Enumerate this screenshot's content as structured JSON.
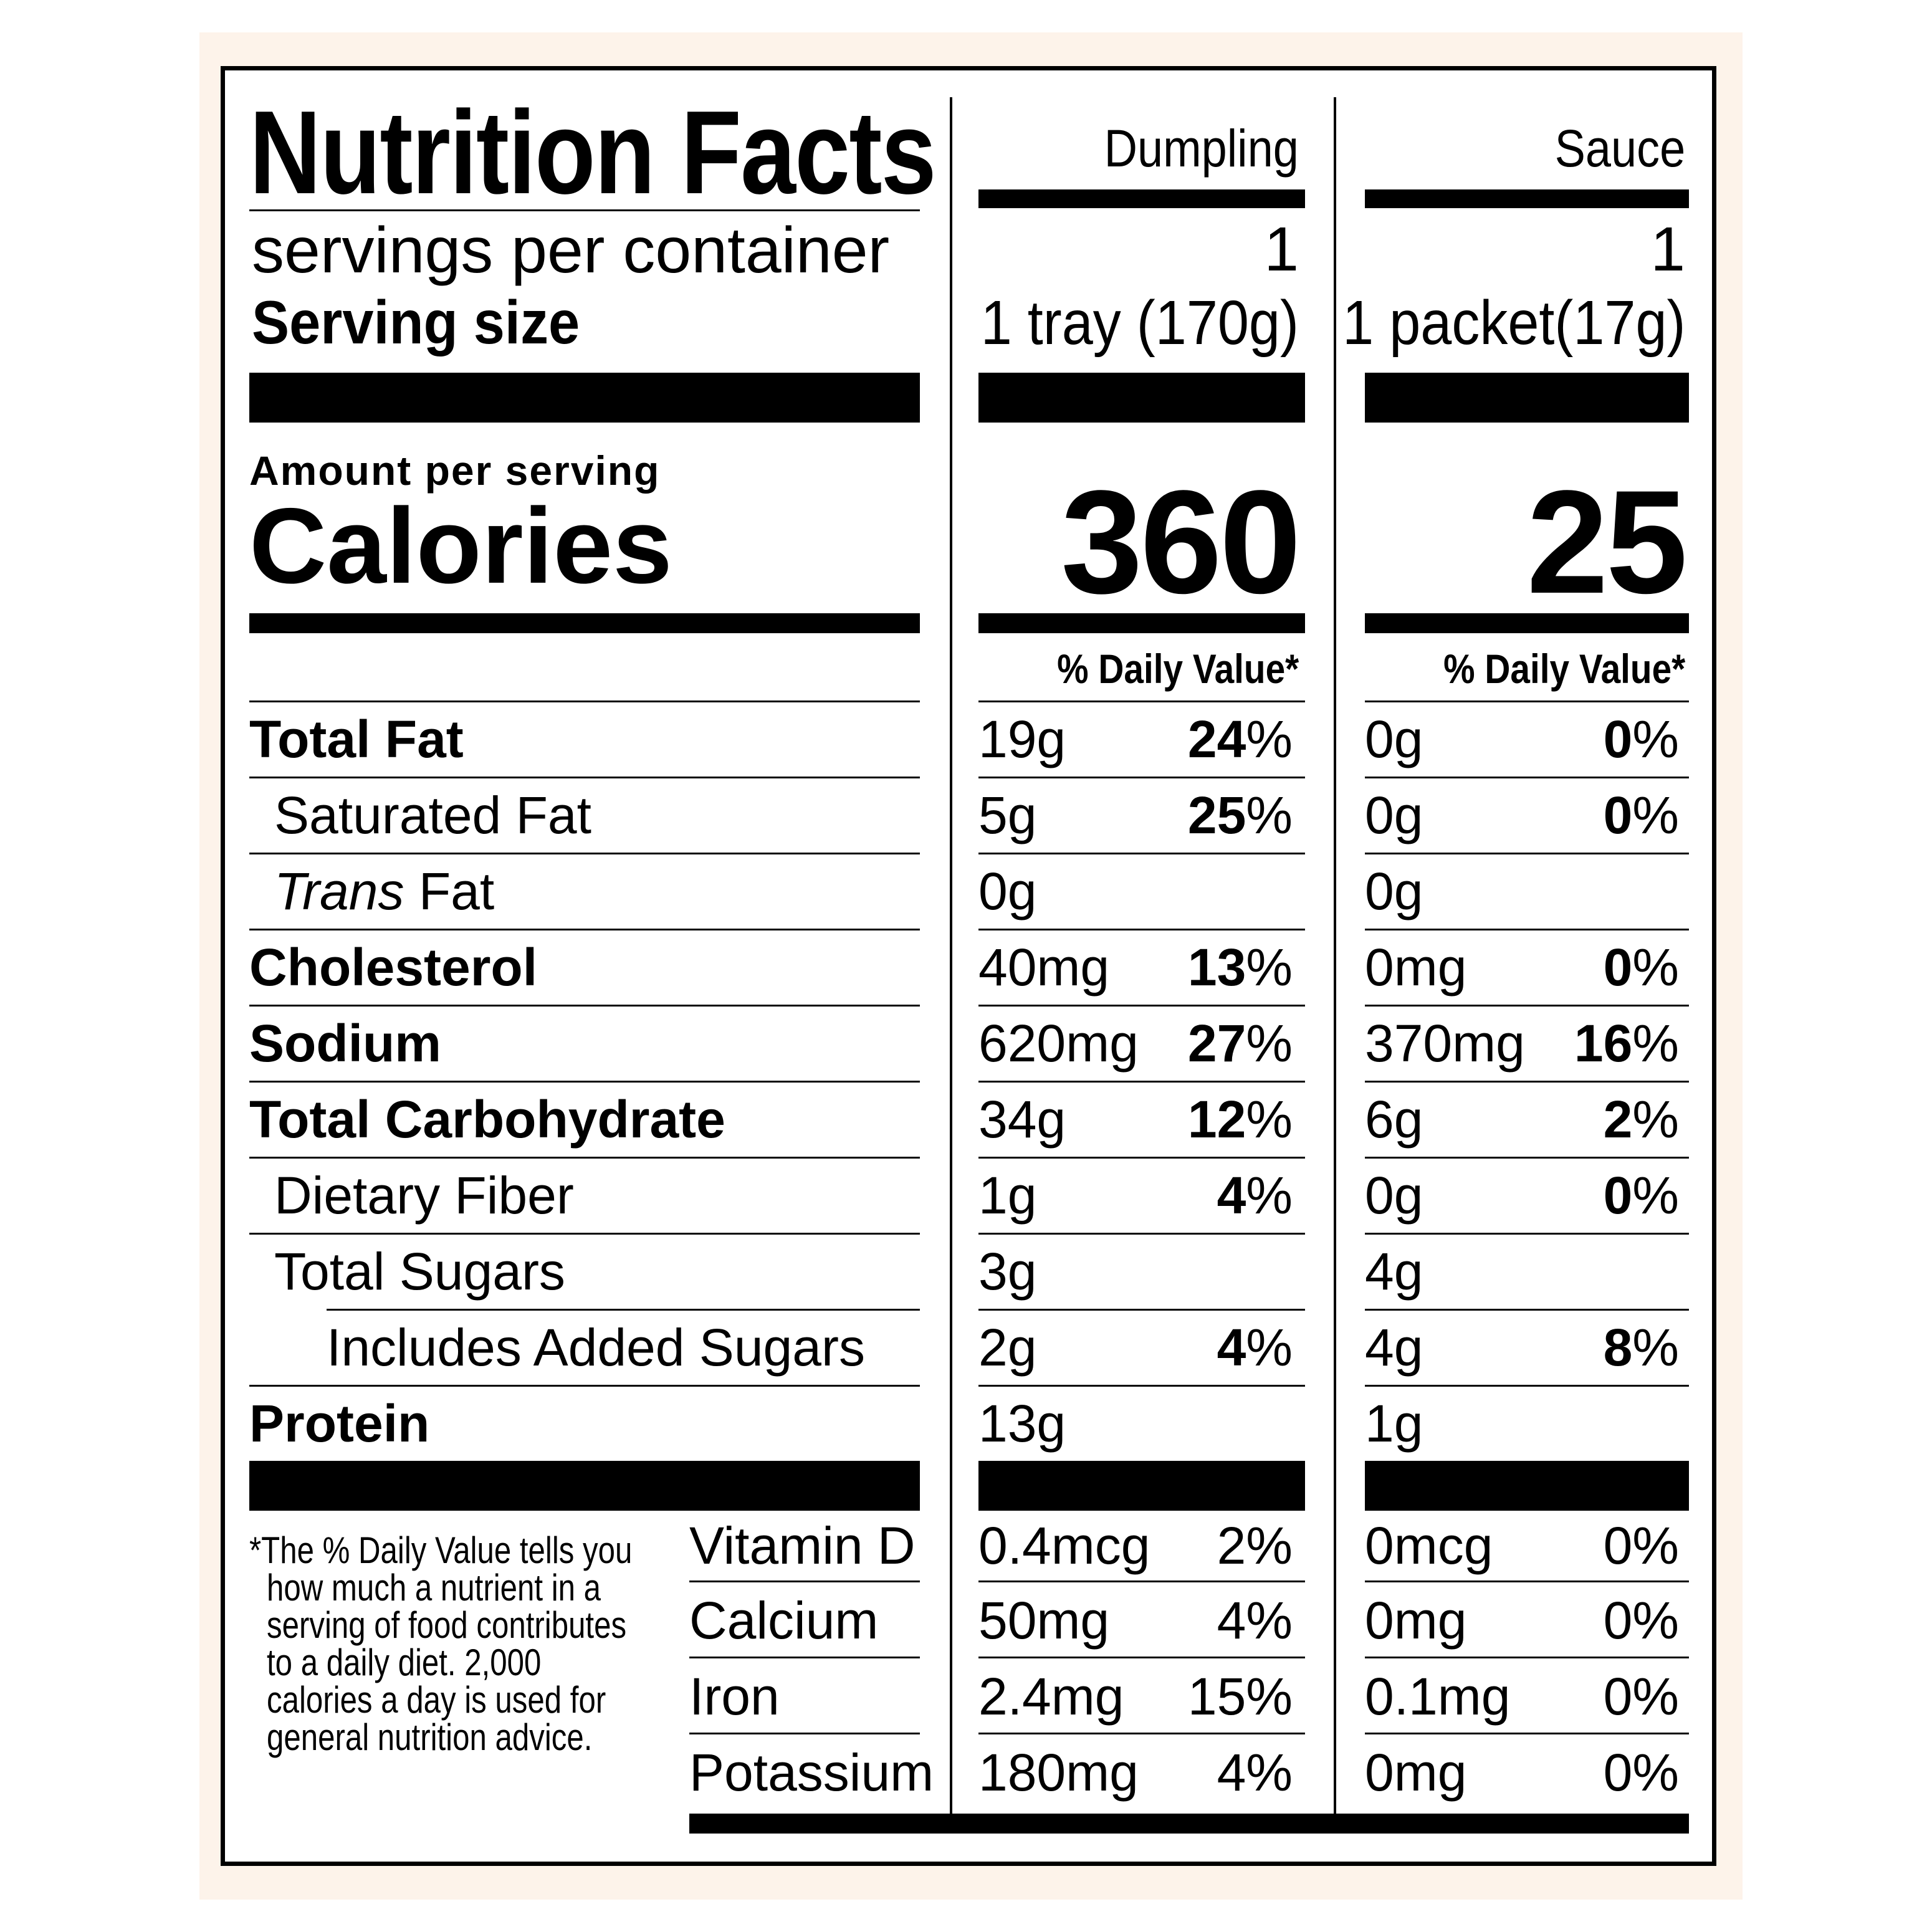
{
  "header": {
    "title": "Nutrition Facts",
    "servings_label": "servings per container",
    "serving_size_label": "Serving size",
    "amount_label": "Amount per serving",
    "calories_label": "Calories",
    "dv_header": "% Daily Value*"
  },
  "columns": [
    {
      "name": "Dumpling",
      "servings": "1",
      "serving_size": "1 tray (170g)",
      "calories": "360"
    },
    {
      "name": "Sauce",
      "servings": "1",
      "serving_size": "1 packet(17g)",
      "calories": "25"
    }
  ],
  "nutrients": [
    {
      "label": "Total Fat",
      "d_amt": "19g",
      "d_pct_num": "24",
      "d_pct_sign": "%",
      "s_amt": "0g",
      "s_pct_num": "0",
      "s_pct_sign": "%"
    },
    {
      "label": "Saturated Fat",
      "d_amt": "5g",
      "d_pct_num": "25",
      "d_pct_sign": "%",
      "s_amt": "0g",
      "s_pct_num": "0",
      "s_pct_sign": "%"
    },
    {
      "label_italic": "Trans",
      "label": " Fat",
      "d_amt": "0g",
      "s_amt": "0g"
    },
    {
      "label": "Cholesterol",
      "d_amt": "40mg",
      "d_pct_num": "13",
      "d_pct_sign": "%",
      "s_amt": "0mg",
      "s_pct_num": "0",
      "s_pct_sign": "%"
    },
    {
      "label": "Sodium",
      "d_amt": "620mg",
      "d_pct_num": "27",
      "d_pct_sign": "%",
      "s_amt": "370mg",
      "s_pct_num": "16",
      "s_pct_sign": "%"
    },
    {
      "label": "Total Carbohydrate",
      "d_amt": "34g",
      "d_pct_num": "12",
      "d_pct_sign": "%",
      "s_amt": "6g",
      "s_pct_num": "2",
      "s_pct_sign": "%"
    },
    {
      "label": "Dietary Fiber",
      "d_amt": "1g",
      "d_pct_num": "4",
      "d_pct_sign": "%",
      "s_amt": "0g",
      "s_pct_num": "0",
      "s_pct_sign": "%"
    },
    {
      "label": "Total Sugars",
      "d_amt": "3g",
      "s_amt": "4g"
    },
    {
      "label": "Includes Added Sugars",
      "d_amt": "2g",
      "d_pct_num": "4",
      "d_pct_sign": "%",
      "s_amt": "4g",
      "s_pct_num": "8",
      "s_pct_sign": "%"
    },
    {
      "label": "Protein",
      "d_amt": "13g",
      "s_amt": "1g"
    }
  ],
  "vitamins": [
    {
      "label": "Vitamin D",
      "d_amt": "0.4mcg",
      "d_pct": "2%",
      "s_amt": "0mcg",
      "s_pct": "0%"
    },
    {
      "label": "Calcium",
      "d_amt": "50mg",
      "d_pct": "4%",
      "s_amt": "0mg",
      "s_pct": "0%"
    },
    {
      "label": "Iron",
      "d_amt": "2.4mg",
      "d_pct": "15%",
      "s_amt": "0.1mg",
      "s_pct": "0%"
    },
    {
      "label": "Potassium",
      "d_amt": "180mg",
      "d_pct": "4%",
      "s_amt": "0mg",
      "s_pct": "0%"
    }
  ],
  "footnote": [
    "*The % Daily Value tells you",
    "how much a nutrient in a",
    "serving of food contributes",
    "to a daily diet. 2,000",
    "calories a day is used for",
    "general nutrition advice."
  ],
  "colors": {
    "background": "#fdf3ea",
    "panel": "#ffffff",
    "ink": "#000000"
  }
}
